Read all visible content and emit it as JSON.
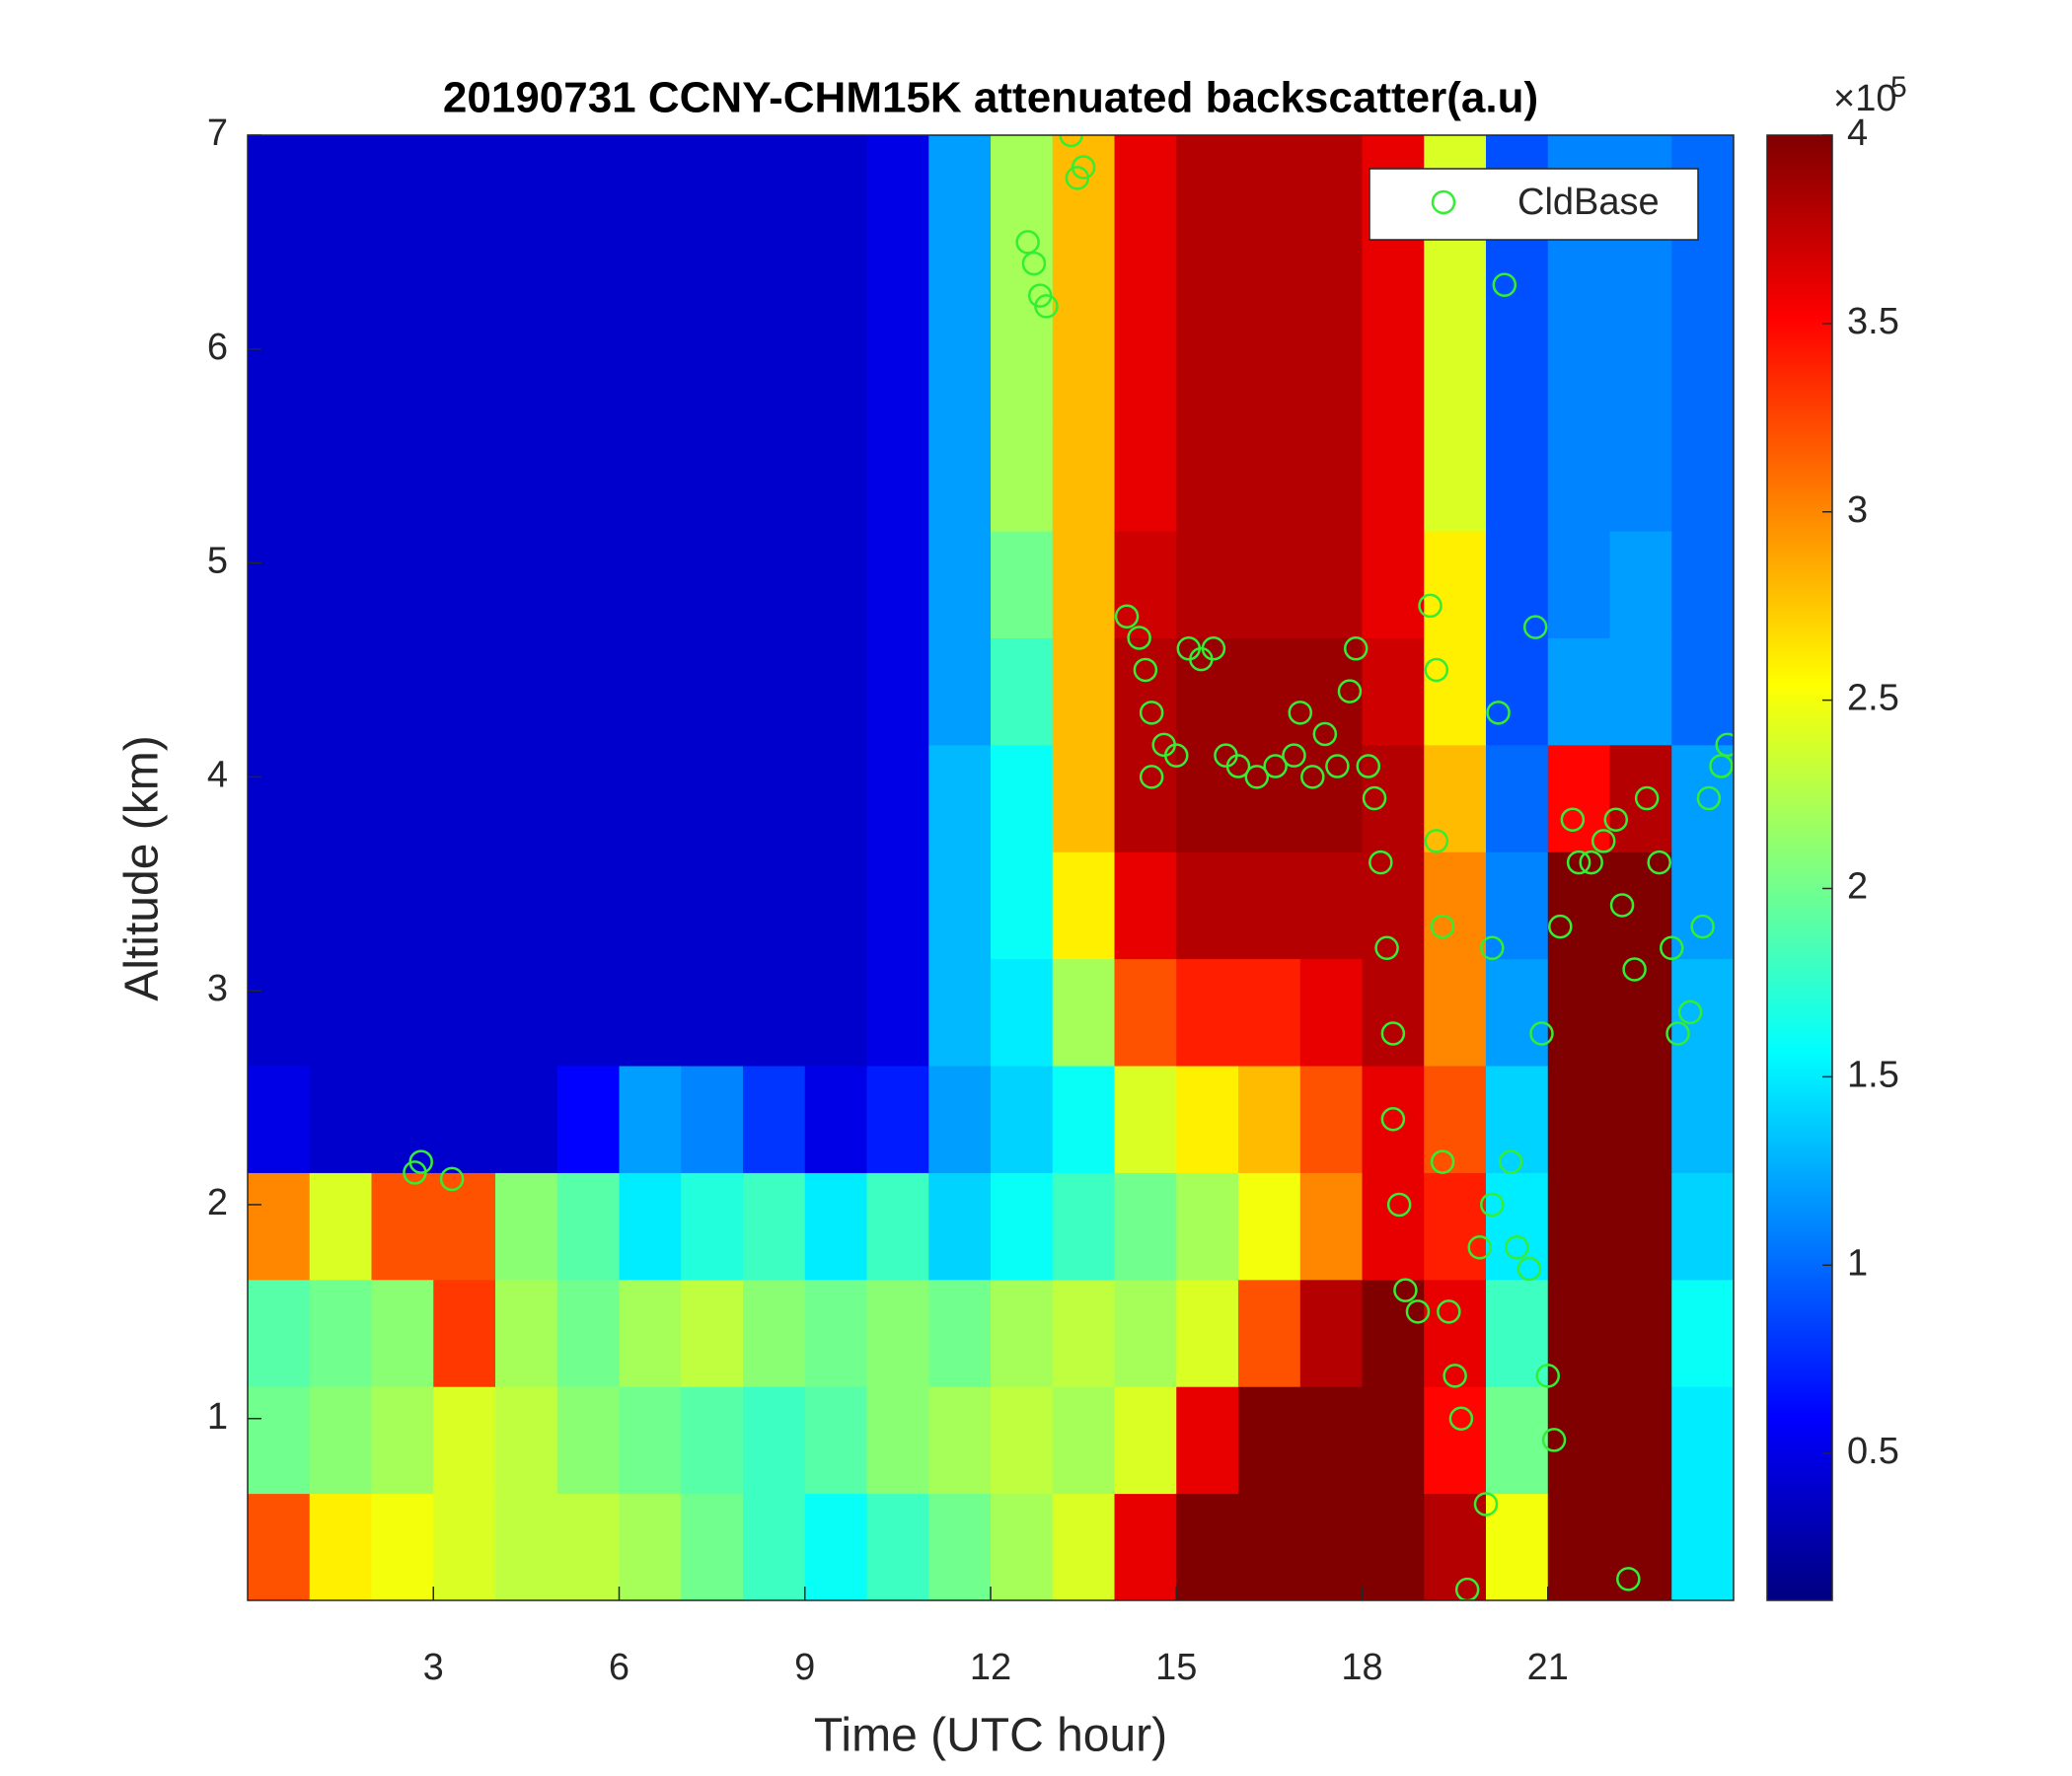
{
  "chart_data": {
    "type": "heatmap",
    "title": "20190731 CCNY-CHM15K attenuated backscatter(a.u)",
    "x_label": "Time (UTC hour)",
    "y_label": "Altitude (km)",
    "xlim": [
      0,
      24
    ],
    "xticks": [
      3,
      6,
      9,
      12,
      15,
      18,
      21
    ],
    "ylim": [
      0.15,
      7
    ],
    "yticks": [
      1,
      2,
      3,
      4,
      5,
      6,
      7
    ],
    "colormap": "jet",
    "x": [
      0.5,
      1.5,
      2.5,
      3.5,
      4.5,
      5.5,
      6.5,
      7.5,
      8.5,
      9.5,
      10.5,
      11.5,
      12.5,
      13.5,
      14.5,
      15.5,
      16.5,
      17.5,
      18.5,
      19.5,
      20.5,
      21.5,
      22.5,
      23.5
    ],
    "y": [
      0.4,
      0.9,
      1.4,
      1.9,
      2.4,
      2.9,
      3.4,
      3.9,
      4.4,
      4.9,
      5.4,
      5.9,
      6.4,
      6.9
    ],
    "z": [
      [
        3.2,
        2.6,
        2.5,
        2.4,
        2.3,
        2.3,
        2.2,
        2.0,
        1.8,
        1.6,
        1.8,
        2.0,
        2.2,
        2.4,
        3.6,
        4,
        4,
        4,
        4,
        3.8,
        2.5,
        4,
        4,
        1.5
      ],
      [
        2.0,
        2.1,
        2.2,
        2.4,
        2.3,
        2.1,
        2.0,
        1.9,
        1.8,
        1.9,
        2.1,
        2.2,
        2.3,
        2.2,
        2.4,
        3.6,
        4,
        4,
        4,
        3.5,
        2.0,
        4,
        4,
        1.5
      ],
      [
        1.9,
        2.0,
        2.1,
        3.3,
        2.2,
        2.0,
        2.2,
        2.3,
        2.1,
        2.0,
        2.1,
        2.0,
        2.2,
        2.3,
        2.2,
        2.4,
        3.2,
        3.8,
        4,
        3.6,
        1.8,
        4,
        4,
        1.6
      ],
      [
        3.0,
        2.4,
        3.2,
        3.2,
        2.1,
        1.9,
        1.5,
        1.7,
        1.8,
        1.5,
        1.8,
        1.4,
        1.6,
        1.8,
        2.0,
        2.2,
        2.5,
        3.0,
        3.6,
        3.4,
        1.5,
        4,
        4,
        1.4
      ],
      [
        0.5,
        0.4,
        0.4,
        0.4,
        0.4,
        0.6,
        1.2,
        1.1,
        0.8,
        0.5,
        0.7,
        1.2,
        1.4,
        1.6,
        2.4,
        2.6,
        2.8,
        3.2,
        3.6,
        3.2,
        1.4,
        4,
        4,
        1.3
      ],
      [
        0.4,
        0.4,
        0.4,
        0.4,
        0.4,
        0.4,
        0.4,
        0.4,
        0.4,
        0.4,
        0.5,
        1.3,
        1.5,
        2.2,
        3.2,
        3.4,
        3.4,
        3.6,
        3.8,
        3.0,
        1.2,
        4,
        4,
        1.3
      ],
      [
        0.4,
        0.4,
        0.4,
        0.4,
        0.4,
        0.4,
        0.4,
        0.4,
        0.4,
        0.4,
        0.5,
        1.3,
        1.6,
        2.6,
        3.6,
        3.8,
        3.8,
        3.8,
        3.8,
        3.0,
        1.1,
        4,
        4,
        1.2
      ],
      [
        0.4,
        0.4,
        0.4,
        0.4,
        0.4,
        0.4,
        0.4,
        0.4,
        0.4,
        0.4,
        0.5,
        1.3,
        1.6,
        2.8,
        3.8,
        3.9,
        3.9,
        3.9,
        3.8,
        2.8,
        1.0,
        3.5,
        3.8,
        1.2
      ],
      [
        0.4,
        0.4,
        0.4,
        0.4,
        0.4,
        0.4,
        0.4,
        0.4,
        0.4,
        0.4,
        0.5,
        1.2,
        1.8,
        2.8,
        3.8,
        3.9,
        3.9,
        3.9,
        3.7,
        2.6,
        0.9,
        1.2,
        1.2,
        1.0
      ],
      [
        0.4,
        0.4,
        0.4,
        0.4,
        0.4,
        0.4,
        0.4,
        0.4,
        0.4,
        0.4,
        0.5,
        1.2,
        2.0,
        2.8,
        3.7,
        3.8,
        3.8,
        3.8,
        3.6,
        2.6,
        0.9,
        1.1,
        1.2,
        1.0
      ],
      [
        0.4,
        0.4,
        0.4,
        0.4,
        0.4,
        0.4,
        0.4,
        0.4,
        0.4,
        0.4,
        0.5,
        1.2,
        2.2,
        2.8,
        3.6,
        3.8,
        3.8,
        3.8,
        3.6,
        2.4,
        0.9,
        1.1,
        1.1,
        1.0
      ],
      [
        0.4,
        0.4,
        0.4,
        0.4,
        0.4,
        0.4,
        0.4,
        0.4,
        0.4,
        0.4,
        0.5,
        1.2,
        2.2,
        2.8,
        3.6,
        3.8,
        3.8,
        3.8,
        3.6,
        2.4,
        0.9,
        1.1,
        1.1,
        1.0
      ],
      [
        0.4,
        0.4,
        0.4,
        0.4,
        0.4,
        0.4,
        0.4,
        0.4,
        0.4,
        0.4,
        0.5,
        1.2,
        2.2,
        2.8,
        3.6,
        3.8,
        3.8,
        3.8,
        3.6,
        2.4,
        0.9,
        1.1,
        1.1,
        1.0
      ],
      [
        0.4,
        0.4,
        0.4,
        0.4,
        0.4,
        0.4,
        0.4,
        0.4,
        0.4,
        0.4,
        0.5,
        1.2,
        2.2,
        2.8,
        3.6,
        3.8,
        3.8,
        3.8,
        3.6,
        2.4,
        0.9,
        1.1,
        1.1,
        1.0
      ]
    ],
    "colorbar": {
      "lim": [
        0.11,
        4
      ],
      "ticks": [
        0.5,
        1,
        1.5,
        2,
        2.5,
        3,
        3.5,
        4
      ],
      "scale_base": "×10",
      "scale_exponent": "5"
    },
    "legend": "upper right",
    "series": [
      {
        "type": "scatter",
        "name": "CldBase",
        "color": "#33ee33",
        "x": [
          2.7,
          2.8,
          3.3,
          12.6,
          12.7,
          12.8,
          12.9,
          13.3,
          13.4,
          13.5,
          14.2,
          14.4,
          14.5,
          14.6,
          14.6,
          14.8,
          15.0,
          15.2,
          15.4,
          15.6,
          15.8,
          16.0,
          16.3,
          16.6,
          16.9,
          17.0,
          17.2,
          17.4,
          17.6,
          17.8,
          17.9,
          18.1,
          18.2,
          18.3,
          18.4,
          18.5,
          18.5,
          18.6,
          18.7,
          18.9,
          19.1,
          19.2,
          19.2,
          19.3,
          19.3,
          19.4,
          19.5,
          19.6,
          19.7,
          19.9,
          20.0,
          20.1,
          20.1,
          20.2,
          20.3,
          20.4,
          20.5,
          20.7,
          20.8,
          20.9,
          21.0,
          21.1,
          21.2,
          21.4,
          21.5,
          21.7,
          21.9,
          22.1,
          22.2,
          22.3,
          22.4,
          22.6,
          22.8,
          23.0,
          23.1,
          23.3,
          23.5,
          23.6,
          23.8,
          23.9
        ],
        "y": [
          2.15,
          2.2,
          2.12,
          6.5,
          6.4,
          6.25,
          6.2,
          7.0,
          6.8,
          6.85,
          4.75,
          4.65,
          4.5,
          4.3,
          4.0,
          4.15,
          4.1,
          4.6,
          4.55,
          4.6,
          4.1,
          4.05,
          4.0,
          4.05,
          4.1,
          4.3,
          4.0,
          4.2,
          4.05,
          4.4,
          4.6,
          4.05,
          3.9,
          3.6,
          3.2,
          2.8,
          2.4,
          2.0,
          1.6,
          1.5,
          4.8,
          4.5,
          3.7,
          3.3,
          2.2,
          1.5,
          1.2,
          1.0,
          0.2,
          1.8,
          0.6,
          2.0,
          3.2,
          4.3,
          6.3,
          2.2,
          1.8,
          1.7,
          4.7,
          2.8,
          1.2,
          0.9,
          3.3,
          3.8,
          3.6,
          3.6,
          3.7,
          3.8,
          3.4,
          0.25,
          3.1,
          3.9,
          3.6,
          3.2,
          2.8,
          2.9,
          3.3,
          3.9,
          4.05,
          4.15
        ]
      }
    ]
  }
}
